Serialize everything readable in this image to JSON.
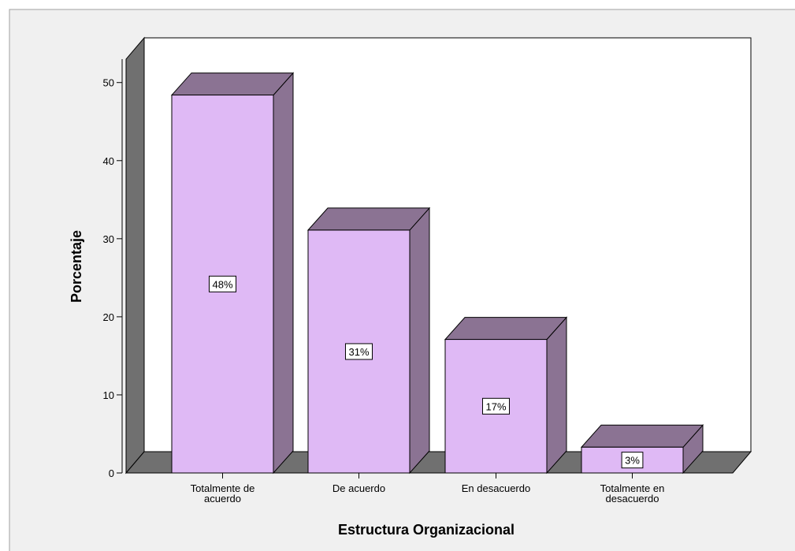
{
  "chart_data": {
    "type": "bar3d",
    "x_label": "Estructura Organizacional",
    "y_label": "Porcentaje",
    "categories": [
      "Totalmente de acuerdo",
      "De acuerdo",
      "En desacuerdo",
      "Totalmente en desacuerdo"
    ],
    "values": [
      48.4,
      31.1,
      17.1,
      3.3
    ],
    "value_labels": [
      "48%",
      "31%",
      "17%",
      "3%"
    ],
    "color": "#dfb9f5",
    "ylim": [
      0,
      53
    ],
    "yticks": [
      0,
      10,
      20,
      30,
      40,
      50
    ]
  }
}
